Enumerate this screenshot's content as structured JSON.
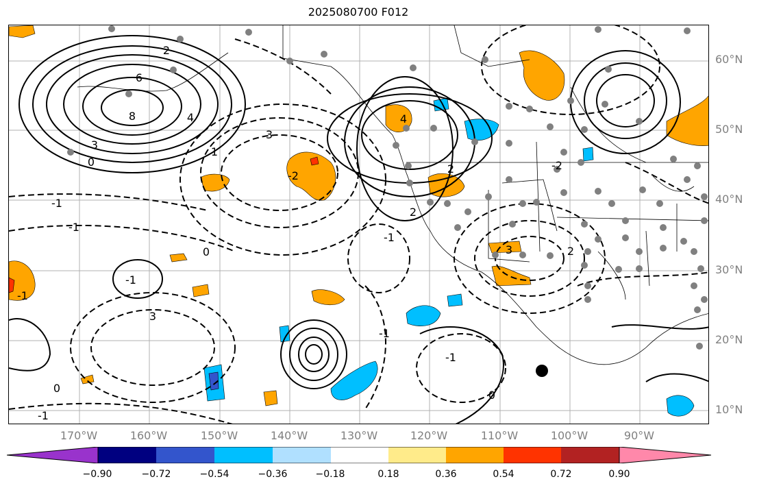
{
  "title": "2025080700 F012",
  "map": {
    "lon_labels": [
      "170°W",
      "160°W",
      "150°W",
      "140°W",
      "130°W",
      "120°W",
      "110°W",
      "100°W",
      "90°W"
    ],
    "lat_labels": [
      "60°N",
      "50°N",
      "40°N",
      "30°N",
      "20°N",
      "10°N"
    ],
    "contour_labels": [
      "6",
      "8",
      "4",
      "3",
      "0",
      "2",
      "1",
      "-1",
      "3",
      "-1",
      "-2",
      "3",
      "0",
      "-1",
      "4",
      "2",
      "2",
      "-1",
      "3",
      "2",
      "0",
      "-1",
      "-1",
      "-1",
      "-2",
      "-1",
      "0"
    ],
    "shade_colors": {
      "orange": "#ffa500",
      "red": "#ff3300",
      "blue": "#00bfff",
      "dark_blue": "#3355cc"
    }
  },
  "colorbar": {
    "ticks": [
      "−0.90",
      "−0.72",
      "−0.54",
      "−0.36",
      "−0.18",
      "0.18",
      "0.36",
      "0.54",
      "0.72",
      "0.90"
    ],
    "colors": [
      "#9933cc",
      "#000080",
      "#3355cc",
      "#00bfff",
      "#b0e0ff",
      "#ffffff",
      "#ffeb8a",
      "#ffa500",
      "#ff3300",
      "#b22222",
      "#ff88aa"
    ]
  }
}
